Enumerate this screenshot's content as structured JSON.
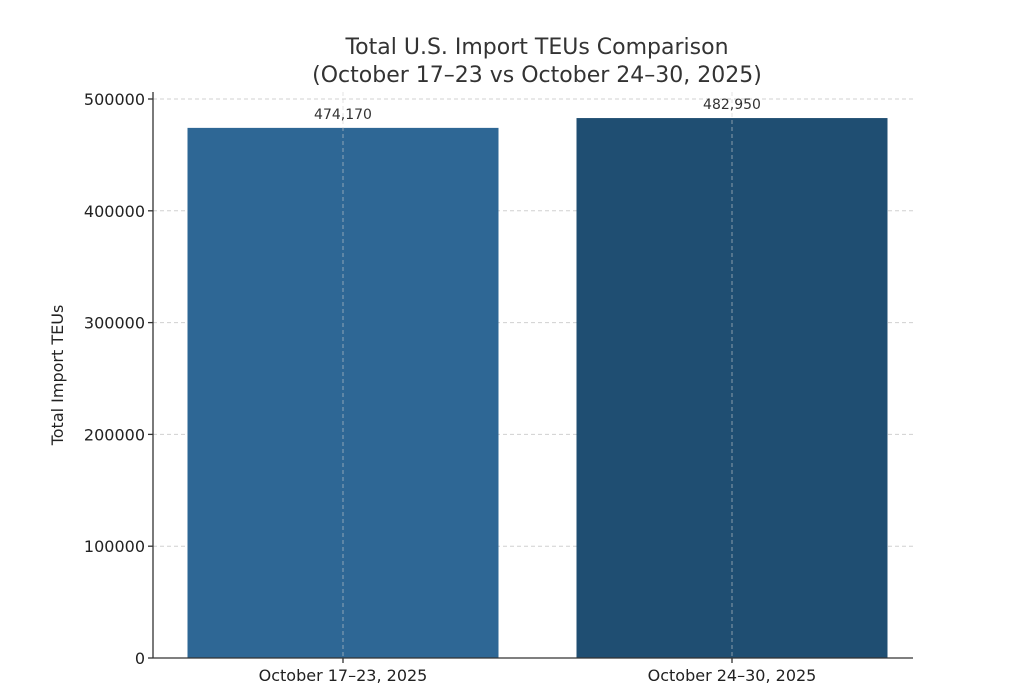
{
  "chart_data": {
    "type": "bar",
    "title": "Total U.S. Import TEUs Comparison",
    "subtitle": "(October 17–23 vs October 24–30, 2025)",
    "xlabel": "",
    "ylabel": "Total Import TEUs",
    "categories": [
      "October 17–23, 2025",
      "October 24–30, 2025"
    ],
    "values": [
      474170,
      482950
    ],
    "data_labels": [
      "474,170",
      "482,950"
    ],
    "colors": [
      "#2e6795",
      "#1f4e72"
    ],
    "ylim": [
      0,
      500000
    ],
    "yticks": [
      0,
      100000,
      200000,
      300000,
      400000,
      500000
    ],
    "ytick_labels": [
      "0",
      "100000",
      "200000",
      "300000",
      "400000",
      "500000"
    ],
    "grid": true,
    "legend": "none"
  }
}
